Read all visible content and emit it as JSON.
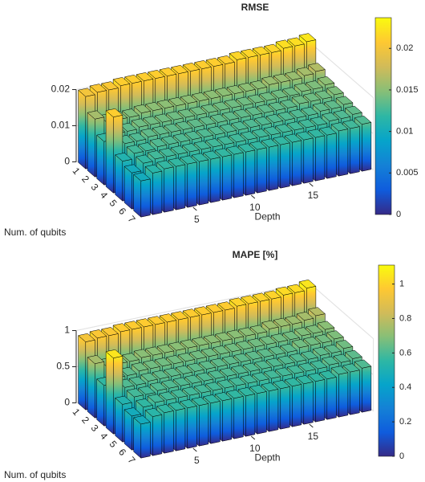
{
  "chart_data": [
    {
      "type": "bar3",
      "title": "RMSE",
      "xlabel": "Depth",
      "ylabel": "Num. of qubits",
      "colormap": "parula",
      "x": [
        1,
        2,
        3,
        4,
        5,
        6,
        7,
        8,
        9,
        10,
        11,
        12,
        13,
        14,
        15,
        16,
        17,
        18,
        19,
        20
      ],
      "xlim": [
        0.5,
        20.5
      ],
      "xticks": [
        5,
        10,
        15
      ],
      "zlim": [
        0,
        0.02
      ],
      "zticks": [
        0,
        0.01,
        0.02
      ],
      "clim": [
        0,
        0.0237
      ],
      "cticks": [
        0,
        0.005,
        0.01,
        0.015,
        0.02
      ],
      "series": [
        {
          "name": "1",
          "values": [
            0.02,
            0.0205,
            0.0205,
            0.021,
            0.021,
            0.021,
            0.021,
            0.021,
            0.021,
            0.021,
            0.021,
            0.021,
            0.021,
            0.0215,
            0.0215,
            0.0215,
            0.0215,
            0.022,
            0.022,
            0.0225
          ]
        },
        {
          "name": "2",
          "values": [
            0.016,
            0.0145,
            0.0145,
            0.0145,
            0.015,
            0.015,
            0.015,
            0.015,
            0.015,
            0.015,
            0.015,
            0.015,
            0.015,
            0.015,
            0.015,
            0.0155,
            0.0155,
            0.0155,
            0.016,
            0.0165
          ]
        },
        {
          "name": "3",
          "values": [
            0.012,
            0.0135,
            0.0135,
            0.014,
            0.014,
            0.014,
            0.014,
            0.014,
            0.014,
            0.014,
            0.014,
            0.014,
            0.014,
            0.014,
            0.014,
            0.014,
            0.014,
            0.0145,
            0.0145,
            0.015
          ]
        },
        {
          "name": "4",
          "values": [
            0.021,
            0.013,
            0.013,
            0.0135,
            0.0135,
            0.0135,
            0.0135,
            0.0135,
            0.0135,
            0.0135,
            0.0135,
            0.0135,
            0.0135,
            0.0135,
            0.0135,
            0.0135,
            0.014,
            0.014,
            0.014,
            0.0145
          ]
        },
        {
          "name": "5",
          "values": [
            0.011,
            0.0125,
            0.0125,
            0.013,
            0.013,
            0.013,
            0.013,
            0.013,
            0.013,
            0.013,
            0.013,
            0.013,
            0.013,
            0.013,
            0.013,
            0.013,
            0.013,
            0.0135,
            0.0135,
            0.014
          ]
        },
        {
          "name": "6",
          "values": [
            0.01,
            0.012,
            0.0125,
            0.0125,
            0.0125,
            0.0125,
            0.0125,
            0.0125,
            0.0125,
            0.0125,
            0.0125,
            0.0125,
            0.0125,
            0.0125,
            0.0125,
            0.0125,
            0.0125,
            0.013,
            0.013,
            0.0135
          ]
        },
        {
          "name": "7",
          "values": [
            0.01,
            0.0115,
            0.012,
            0.012,
            0.012,
            0.012,
            0.012,
            0.012,
            0.012,
            0.012,
            0.012,
            0.012,
            0.012,
            0.012,
            0.012,
            0.012,
            0.012,
            0.0125,
            0.0125,
            0.013
          ]
        }
      ]
    },
    {
      "type": "bar3",
      "title": "MAPE [%]",
      "xlabel": "Depth",
      "ylabel": "Num. of qubits",
      "colormap": "parula",
      "x": [
        1,
        2,
        3,
        4,
        5,
        6,
        7,
        8,
        9,
        10,
        11,
        12,
        13,
        14,
        15,
        16,
        17,
        18,
        19,
        20
      ],
      "xlim": [
        0.5,
        20.5
      ],
      "xticks": [
        5,
        10,
        15
      ],
      "zlim": [
        0,
        1
      ],
      "zticks": [
        0,
        0.5,
        1
      ],
      "clim": [
        0,
        1.11
      ],
      "cticks": [
        0,
        0.2,
        0.4,
        0.6,
        0.8,
        1
      ],
      "series": [
        {
          "name": "1",
          "values": [
            0.94,
            0.96,
            0.96,
            0.98,
            0.98,
            0.98,
            0.98,
            0.98,
            0.98,
            0.98,
            0.98,
            0.98,
            0.98,
            1,
            1,
            1,
            1,
            1.02,
            1.02,
            1.05
          ]
        },
        {
          "name": "2",
          "values": [
            0.75,
            0.68,
            0.68,
            0.68,
            0.7,
            0.7,
            0.7,
            0.7,
            0.7,
            0.7,
            0.7,
            0.7,
            0.7,
            0.7,
            0.7,
            0.73,
            0.73,
            0.73,
            0.75,
            0.78
          ]
        },
        {
          "name": "3",
          "values": [
            0.56,
            0.63,
            0.63,
            0.66,
            0.66,
            0.66,
            0.66,
            0.66,
            0.66,
            0.66,
            0.66,
            0.66,
            0.66,
            0.66,
            0.66,
            0.66,
            0.66,
            0.68,
            0.68,
            0.7
          ]
        },
        {
          "name": "4",
          "values": [
            1.05,
            0.61,
            0.61,
            0.63,
            0.63,
            0.63,
            0.63,
            0.63,
            0.63,
            0.63,
            0.63,
            0.63,
            0.63,
            0.63,
            0.63,
            0.63,
            0.66,
            0.66,
            0.66,
            0.68
          ]
        },
        {
          "name": "5",
          "values": [
            0.52,
            0.59,
            0.59,
            0.61,
            0.61,
            0.61,
            0.61,
            0.61,
            0.61,
            0.61,
            0.61,
            0.61,
            0.61,
            0.61,
            0.61,
            0.61,
            0.61,
            0.63,
            0.63,
            0.66
          ]
        },
        {
          "name": "6",
          "values": [
            0.47,
            0.56,
            0.59,
            0.59,
            0.59,
            0.59,
            0.59,
            0.59,
            0.59,
            0.59,
            0.59,
            0.59,
            0.59,
            0.59,
            0.59,
            0.59,
            0.59,
            0.61,
            0.61,
            0.63
          ]
        },
        {
          "name": "7",
          "values": [
            0.47,
            0.54,
            0.56,
            0.56,
            0.56,
            0.56,
            0.56,
            0.56,
            0.56,
            0.56,
            0.56,
            0.56,
            0.56,
            0.56,
            0.56,
            0.56,
            0.56,
            0.59,
            0.59,
            0.61
          ]
        }
      ]
    }
  ]
}
